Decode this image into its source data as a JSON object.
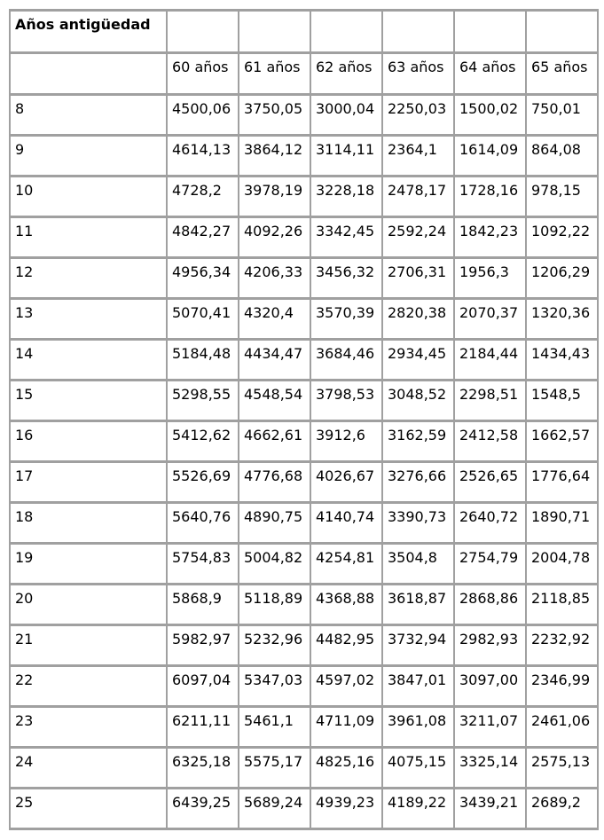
{
  "colors": {
    "background": "#ffffff",
    "border": "#a0a0a0",
    "text": "#000000"
  },
  "chart_data": {
    "type": "table",
    "title": "Años antigüedad",
    "corner_header": "Años antigüedad",
    "column_headers": [
      "60 años",
      "61 años",
      "62 años",
      "63 años",
      "64 años",
      "65 años"
    ],
    "rows": [
      {
        "label": "8",
        "values": [
          "4500,06",
          "3750,05",
          "3000,04",
          "2250,03",
          "1500,02",
          "750,01"
        ]
      },
      {
        "label": "9",
        "values": [
          "4614,13",
          "3864,12",
          "3114,11",
          "2364,1",
          "1614,09",
          "864,08"
        ]
      },
      {
        "label": "10",
        "values": [
          "4728,2",
          "3978,19",
          "3228,18",
          "2478,17",
          "1728,16",
          "978,15"
        ]
      },
      {
        "label": "11",
        "values": [
          "4842,27",
          "4092,26",
          "3342,45",
          "2592,24",
          "1842,23",
          "1092,22"
        ]
      },
      {
        "label": "12",
        "values": [
          "4956,34",
          "4206,33",
          "3456,32",
          "2706,31",
          "1956,3",
          "1206,29"
        ]
      },
      {
        "label": "13",
        "values": [
          "5070,41",
          "4320,4",
          "3570,39",
          "2820,38",
          "2070,37",
          "1320,36"
        ]
      },
      {
        "label": "14",
        "values": [
          "5184,48",
          "4434,47",
          "3684,46",
          "2934,45",
          "2184,44",
          "1434,43"
        ]
      },
      {
        "label": "15",
        "values": [
          "5298,55",
          "4548,54",
          "3798,53",
          "3048,52",
          "2298,51",
          "1548,5"
        ]
      },
      {
        "label": "16",
        "values": [
          "5412,62",
          "4662,61",
          "3912,6",
          "3162,59",
          "2412,58",
          "1662,57"
        ]
      },
      {
        "label": "17",
        "values": [
          "5526,69",
          "4776,68",
          "4026,67",
          "3276,66",
          "2526,65",
          "1776,64"
        ]
      },
      {
        "label": "18",
        "values": [
          "5640,76",
          "4890,75",
          "4140,74",
          "3390,73",
          "2640,72",
          "1890,71"
        ]
      },
      {
        "label": "19",
        "values": [
          "5754,83",
          "5004,82",
          "4254,81",
          "3504,8",
          "2754,79",
          "2004,78"
        ]
      },
      {
        "label": "20",
        "values": [
          "5868,9",
          "5118,89",
          "4368,88",
          "3618,87",
          "2868,86",
          "2118,85"
        ]
      },
      {
        "label": "21",
        "values": [
          "5982,97",
          "5232,96",
          "4482,95",
          "3732,94",
          "2982,93",
          "2232,92"
        ]
      },
      {
        "label": "22",
        "values": [
          "6097,04",
          "5347,03",
          "4597,02",
          "3847,01",
          "3097,00",
          "2346,99"
        ]
      },
      {
        "label": "23",
        "values": [
          "6211,11",
          "5461,1",
          "4711,09",
          "3961,08",
          "3211,07",
          "2461,06"
        ]
      },
      {
        "label": "24",
        "values": [
          "6325,18",
          "5575,17",
          "4825,16",
          "4075,15",
          "3325,14",
          "2575,13"
        ]
      },
      {
        "label": "25",
        "values": [
          "6439,25",
          "5689,24",
          "4939,23",
          "4189,22",
          "3439,21",
          "2689,2"
        ]
      }
    ]
  }
}
